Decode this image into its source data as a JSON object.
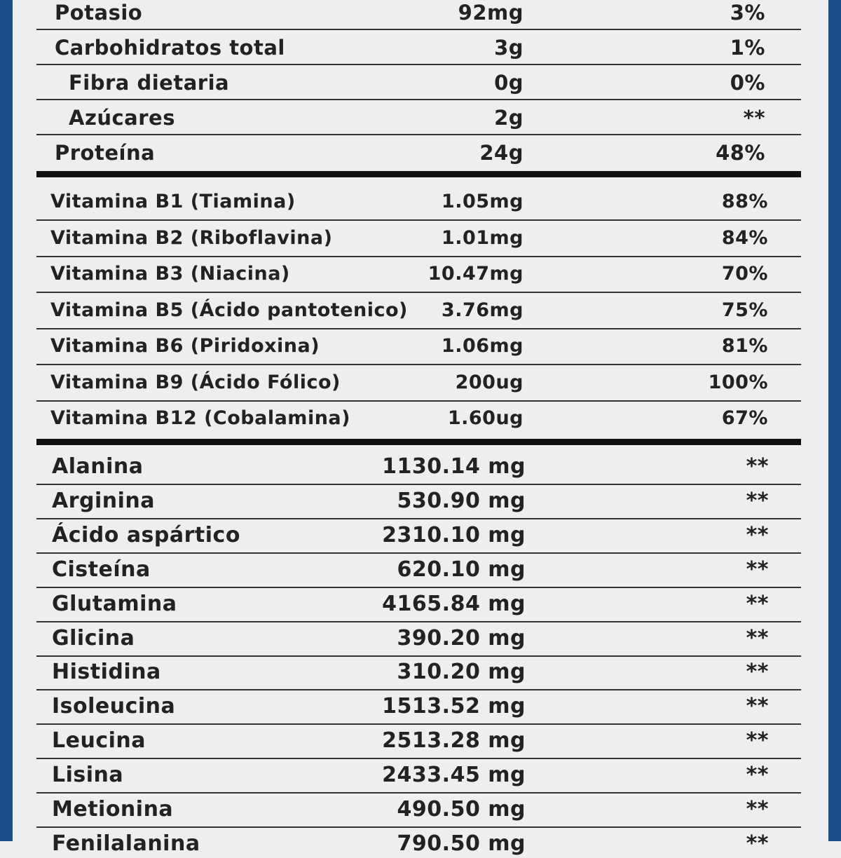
{
  "sections": [
    {
      "rows": [
        {
          "name": "Potasio",
          "amount": "92mg",
          "dv": "3%"
        },
        {
          "name": "Carbohidratos total",
          "amount": "3g",
          "dv": "1%"
        },
        {
          "name": "Fibra dietaria",
          "amount": "0g",
          "dv": "0%"
        },
        {
          "name": "Azúcares",
          "amount": "2g",
          "dv": "**"
        },
        {
          "name": "Proteína",
          "amount": "24g",
          "dv": "48%"
        }
      ]
    },
    {
      "rows": [
        {
          "name": "Vitamina B1 (Tiamina)",
          "amount": "1.05mg",
          "dv": "88%"
        },
        {
          "name": "Vitamina B2 (Riboflavina)",
          "amount": "1.01mg",
          "dv": "84%"
        },
        {
          "name": "Vitamina B3 (Niacina)",
          "amount": "10.47mg",
          "dv": "70%"
        },
        {
          "name": "Vitamina B5 (Ácido pantotenico)",
          "amount": "3.76mg",
          "dv": "75%"
        },
        {
          "name": "Vitamina B6 (Piridoxina)",
          "amount": "1.06mg",
          "dv": "81%"
        },
        {
          "name": "Vitamina B9 (Ácido Fólico)",
          "amount": "200ug",
          "dv": "100%"
        },
        {
          "name": "Vitamina B12 (Cobalamina)",
          "amount": "1.60ug",
          "dv": "67%"
        }
      ]
    },
    {
      "rows": [
        {
          "name": "Alanina",
          "amount": "1130.14 mg",
          "dv": "**"
        },
        {
          "name": "Arginina",
          "amount": "530.90 mg",
          "dv": "**"
        },
        {
          "name": "Ácido aspártico",
          "amount": "2310.10 mg",
          "dv": "**"
        },
        {
          "name": "Cisteína",
          "amount": "620.10 mg",
          "dv": "**"
        },
        {
          "name": "Glutamina",
          "amount": "4165.84 mg",
          "dv": "**"
        },
        {
          "name": "Glicina",
          "amount": "390.20 mg",
          "dv": "**"
        },
        {
          "name": "Histidina",
          "amount": "310.20 mg",
          "dv": "**"
        },
        {
          "name": "Isoleucina",
          "amount": "1513.52 mg",
          "dv": "**"
        },
        {
          "name": "Leucina",
          "amount": "2513.28 mg",
          "dv": "**"
        },
        {
          "name": "Lisina",
          "amount": "2433.45 mg",
          "dv": "**"
        },
        {
          "name": "Metionina",
          "amount": "490.50 mg",
          "dv": "**"
        },
        {
          "name": "Fenilalanina",
          "amount": "790.50 mg",
          "dv": "**"
        }
      ]
    }
  ]
}
